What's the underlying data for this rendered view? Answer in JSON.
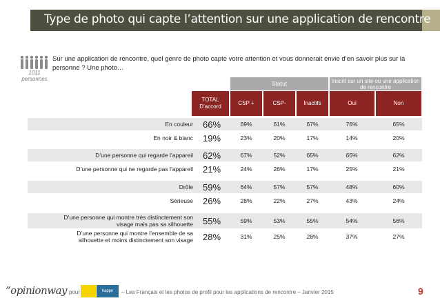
{
  "title": "Type de photo qui capte l’attention sur une application de rencontre",
  "sample": {
    "n": "1011",
    "unit": "personnes"
  },
  "question": "Sur une application de rencontre, quel genre de photo capte votre attention et vous donnerait envie d’en savoir plus sur la personne ? Une photo…",
  "headers": {
    "statut": "Statut",
    "inscrit": "Inscrit sur un site ou une application de rencontre",
    "total": "TOTAL D’accord",
    "columns": [
      "CSP +",
      "CSP-",
      "Inactifs",
      "Oui",
      "Non"
    ]
  },
  "rows": [
    {
      "label": "En couleur",
      "total": "66%",
      "values": [
        "69%",
        "61%",
        "67%",
        "76%",
        "65%"
      ]
    },
    {
      "label": "En noir & blanc",
      "total": "19%",
      "values": [
        "23%",
        "20%",
        "17%",
        "14%",
        "20%"
      ]
    },
    {
      "label": "D’une personne qui regarde l’appareil",
      "total": "62%",
      "values": [
        "67%",
        "52%",
        "65%",
        "65%",
        "62%"
      ]
    },
    {
      "label": "D’une personne qui ne regarde pas l’appareil",
      "total": "21%",
      "values": [
        "24%",
        "26%",
        "17%",
        "25%",
        "21%"
      ]
    },
    {
      "label": "Drôle",
      "total": "59%",
      "values": [
        "64%",
        "57%",
        "57%",
        "48%",
        "60%"
      ]
    },
    {
      "label": "Sérieuse",
      "total": "26%",
      "values": [
        "28%",
        "22%",
        "27%",
        "43%",
        "24%"
      ]
    },
    {
      "label": "D’une personne qui montre très distinctement son visage mais pas sa silhouette",
      "total": "55%",
      "values": [
        "59%",
        "53%",
        "55%",
        "54%",
        "56%"
      ]
    },
    {
      "label": "D’une personne qui montre l’ensemble de sa silhouette et moins distinctement son visage",
      "total": "28%",
      "values": [
        "31%",
        "25%",
        "28%",
        "37%",
        "27%"
      ]
    }
  ],
  "chart_data": {
    "type": "table",
    "title": "Type de photo qui capte l’attention sur une application de rencontre",
    "columns": [
      "TOTAL D’accord",
      "CSP +",
      "CSP-",
      "Inactifs",
      "Oui",
      "Non"
    ],
    "column_groups": [
      {
        "name": "Statut",
        "columns": [
          "CSP +",
          "CSP-",
          "Inactifs"
        ]
      },
      {
        "name": "Inscrit sur un site ou une application de rencontre",
        "columns": [
          "Oui",
          "Non"
        ]
      }
    ],
    "categories": [
      "En couleur",
      "En noir & blanc",
      "D’une personne qui regarde l’appareil",
      "D’une personne qui ne regarde pas l’appareil",
      "Drôle",
      "Sérieuse",
      "D’une personne qui montre très distinctement son visage mais pas sa silhouette",
      "D’une personne qui montre l’ensemble de sa silhouette et moins distinctement son visage"
    ],
    "series": [
      {
        "name": "TOTAL D’accord",
        "values": [
          66,
          19,
          62,
          21,
          59,
          26,
          55,
          28
        ]
      },
      {
        "name": "CSP +",
        "values": [
          69,
          23,
          67,
          24,
          64,
          28,
          59,
          31
        ]
      },
      {
        "name": "CSP-",
        "values": [
          61,
          20,
          52,
          26,
          57,
          22,
          53,
          25
        ]
      },
      {
        "name": "Inactifs",
        "values": [
          67,
          17,
          65,
          17,
          57,
          27,
          55,
          28
        ]
      },
      {
        "name": "Oui",
        "values": [
          76,
          14,
          65,
          25,
          48,
          43,
          54,
          37
        ]
      },
      {
        "name": "Non",
        "values": [
          65,
          20,
          62,
          21,
          60,
          24,
          56,
          27
        ]
      }
    ]
  },
  "footer": {
    "brand": "“opinionway",
    "pour": "pour",
    "sponsor2": "happn",
    "text": "– Les Français et les photos de profil pour les applications de rencontre – Janvier 2015",
    "page": "9"
  },
  "colors": {
    "title_bg": "#4f4f3f",
    "header_red": "#8c2523",
    "header_grey": "#a9a9a9",
    "row_shade": "#e8e8e8",
    "page_num": "#c0392b"
  }
}
